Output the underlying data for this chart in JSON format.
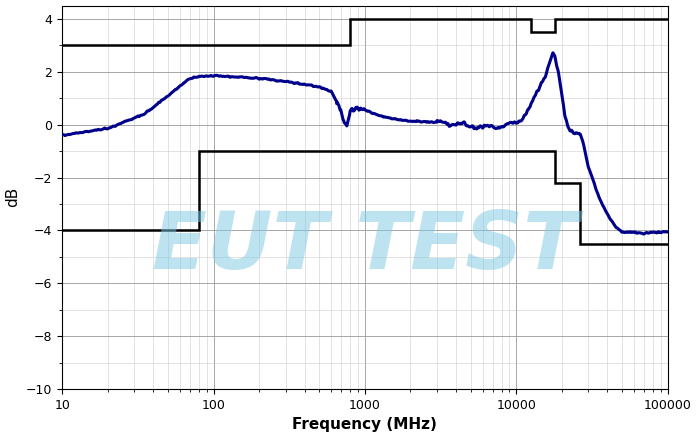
{
  "xlabel": "Frequency (MHz)",
  "ylabel": "dB",
  "xlim": [
    10,
    100000
  ],
  "ylim": [
    -10,
    4.5
  ],
  "yticks": [
    -10,
    -8,
    -6,
    -4,
    -2,
    0,
    2,
    4
  ],
  "watermark_text": "EUT TEST",
  "watermark_color": "#7EC8E3",
  "watermark_alpha": 0.5,
  "upper_limit_x": [
    10,
    800,
    800,
    12500,
    12500,
    18000,
    18000,
    100000
  ],
  "upper_limit_y": [
    3.0,
    3.0,
    4.0,
    4.0,
    3.5,
    3.5,
    4.0,
    4.0
  ],
  "lower_limit_x": [
    10,
    80,
    80,
    700,
    700,
    18000,
    18000,
    26500,
    26500,
    100000
  ],
  "lower_limit_y": [
    -4.0,
    -4.0,
    -1.0,
    -1.0,
    -1.0,
    -1.0,
    -2.2,
    -2.2,
    -4.5,
    -4.5
  ],
  "curve_color": "#00008B",
  "limit_color": "#000000",
  "background_color": "#FFFFFF",
  "grid_major_color": "#999999",
  "grid_minor_color": "#CCCCCC",
  "curve_lw": 2.2,
  "limit_lw": 1.8,
  "control_points": [
    [
      10,
      -0.4
    ],
    [
      20,
      -0.15
    ],
    [
      35,
      0.4
    ],
    [
      50,
      1.1
    ],
    [
      70,
      1.75
    ],
    [
      80,
      1.82
    ],
    [
      100,
      1.85
    ],
    [
      150,
      1.78
    ],
    [
      200,
      1.75
    ],
    [
      250,
      1.68
    ],
    [
      300,
      1.62
    ],
    [
      400,
      1.52
    ],
    [
      500,
      1.42
    ],
    [
      600,
      1.25
    ],
    [
      680,
      0.7
    ],
    [
      730,
      0.1
    ],
    [
      760,
      -0.05
    ],
    [
      800,
      0.5
    ],
    [
      900,
      0.62
    ],
    [
      1000,
      0.55
    ],
    [
      1200,
      0.38
    ],
    [
      1500,
      0.22
    ],
    [
      2000,
      0.12
    ],
    [
      2500,
      0.12
    ],
    [
      3000,
      0.08
    ],
    [
      4000,
      0.02
    ],
    [
      5000,
      -0.05
    ],
    [
      6000,
      -0.08
    ],
    [
      7000,
      -0.1
    ],
    [
      8000,
      -0.05
    ],
    [
      9000,
      0.0
    ],
    [
      10000,
      0.05
    ],
    [
      12000,
      0.5
    ],
    [
      14000,
      1.3
    ],
    [
      16000,
      2.1
    ],
    [
      17500,
      2.72
    ],
    [
      18000,
      2.55
    ],
    [
      19000,
      1.9
    ],
    [
      20000,
      1.1
    ],
    [
      21000,
      0.35
    ],
    [
      22000,
      -0.05
    ],
    [
      23000,
      -0.2
    ],
    [
      24000,
      -0.28
    ],
    [
      25000,
      -0.32
    ],
    [
      26500,
      -0.35
    ],
    [
      28000,
      -0.8
    ],
    [
      30000,
      -1.6
    ],
    [
      35000,
      -2.7
    ],
    [
      40000,
      -3.4
    ],
    [
      45000,
      -3.85
    ],
    [
      50000,
      -4.05
    ],
    [
      70000,
      -4.1
    ],
    [
      100000,
      -4.05
    ]
  ]
}
